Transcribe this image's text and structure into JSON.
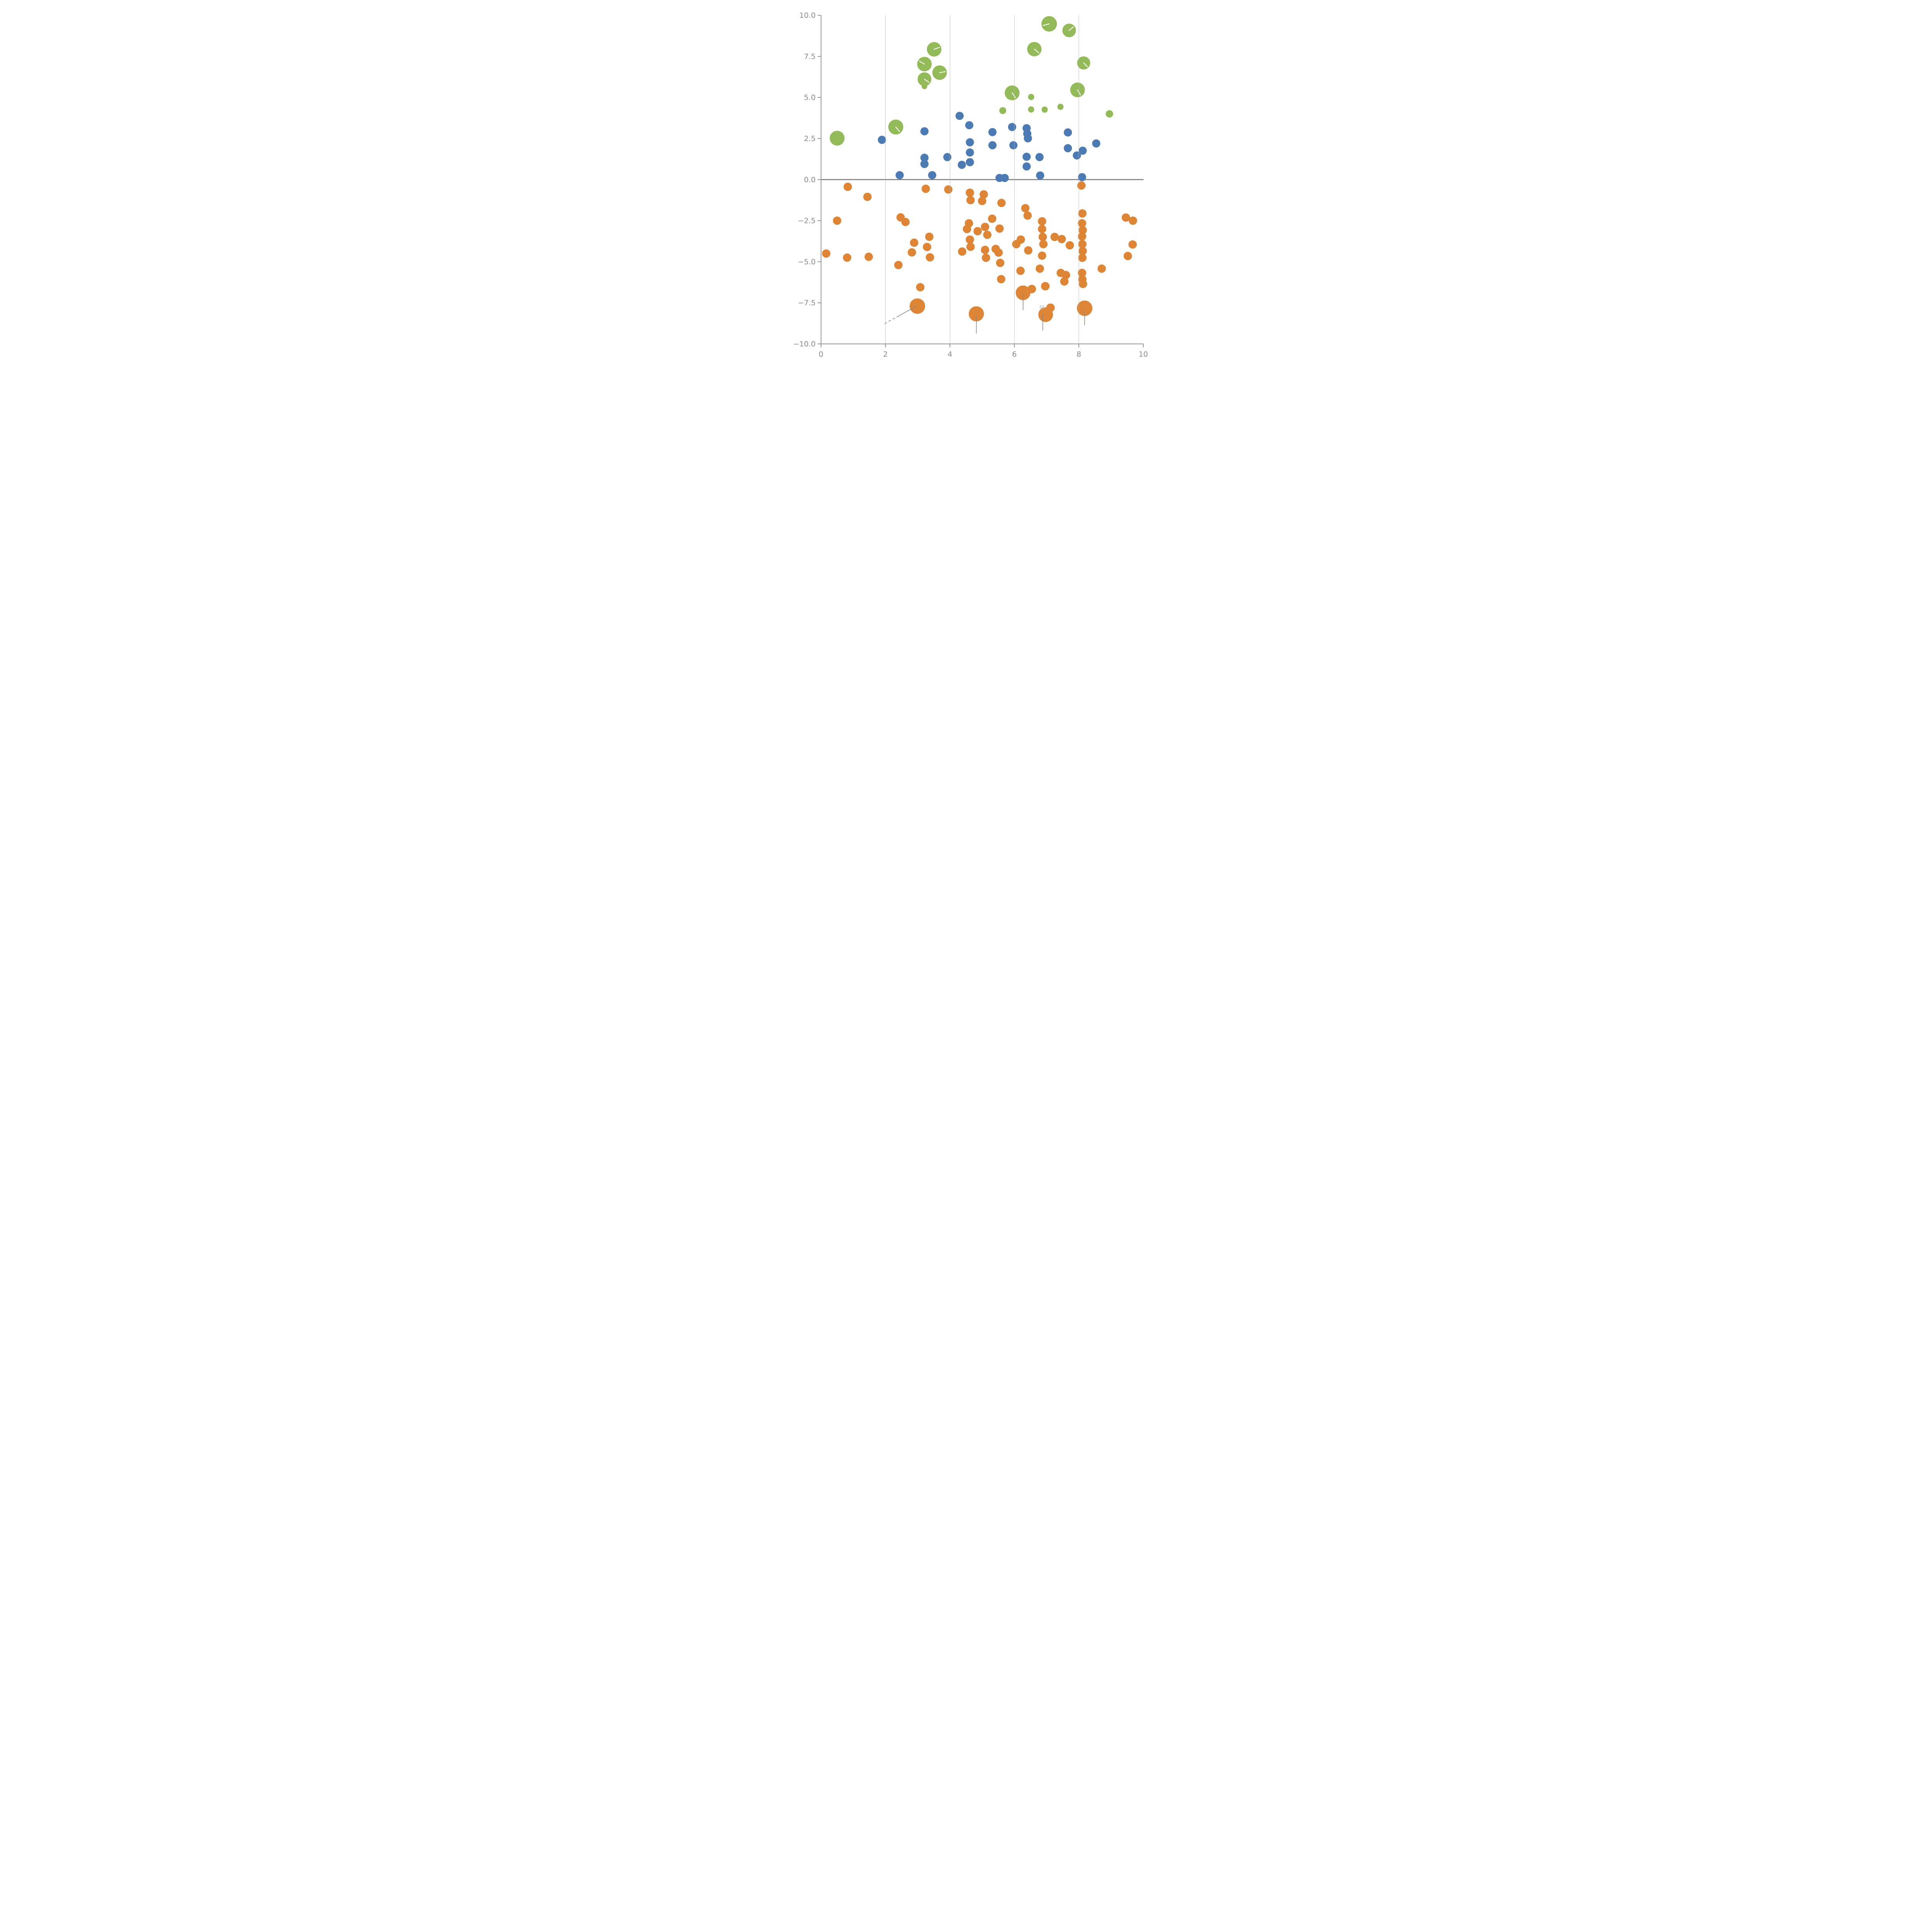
{
  "chart_data": {
    "type": "scatter",
    "title": "",
    "xlabel": "",
    "ylabel": "",
    "xlim": [
      0,
      10
    ],
    "ylim": [
      -10,
      10
    ],
    "grid": "vertical-only",
    "legend": "none",
    "x_ticks": [
      {
        "value": 0,
        "label": "0"
      },
      {
        "value": 2,
        "label": "2"
      },
      {
        "value": 4,
        "label": "4"
      },
      {
        "value": 6,
        "label": "6"
      },
      {
        "value": 8,
        "label": "8"
      },
      {
        "value": 10,
        "label": "10"
      }
    ],
    "y_ticks": [
      {
        "value": 10,
        "label": "10.0"
      },
      {
        "value": 7.5,
        "label": "7.5"
      },
      {
        "value": 5,
        "label": "5.0"
      },
      {
        "value": 2.5,
        "label": "2.5"
      },
      {
        "value": 0,
        "label": "0.0"
      },
      {
        "value": -2.5,
        "label": "−2.5"
      },
      {
        "value": -5,
        "label": "−5.0"
      },
      {
        "value": -7.5,
        "label": "−7.5"
      },
      {
        "value": -10,
        "label": "−10.0"
      }
    ],
    "gridlines_x": [
      2,
      4,
      6,
      8
    ],
    "zero_line_y": 0,
    "colors": {
      "green": "#93ba58",
      "blue": "#4c7bb4",
      "orange": "#dd8435",
      "grid": "#b5b5b5",
      "spine": "#8a8a8a",
      "zero_line": "#7d7d7d",
      "tick_label": "#8a8a8a",
      "annotation_line": "#8a8a8a",
      "needle": "#f2f6ea",
      "text_annotation": "#bfbfbf"
    },
    "series": [
      {
        "name": "green-bubbles",
        "color": "#93ba58",
        "points": [
          {
            "x": 0.5,
            "y": 2.52,
            "r": 19.2,
            "needle": null
          },
          {
            "x": 2.32,
            "y": 3.2,
            "r": 19.4,
            "needle": -50
          },
          {
            "x": 3.51,
            "y": 7.93,
            "r": 18.8,
            "needle": 20
          },
          {
            "x": 3.21,
            "y": 7.03,
            "r": 18.8,
            "needle": 150
          },
          {
            "x": 3.68,
            "y": 6.51,
            "r": 18.8,
            "needle": 10
          },
          {
            "x": 3.21,
            "y": 6.11,
            "r": 17.8,
            "needle": -35
          },
          {
            "x": 3.21,
            "y": 5.67,
            "r": 7.2,
            "needle": null
          },
          {
            "x": 7.08,
            "y": 9.48,
            "r": 20.0,
            "needle": 195
          },
          {
            "x": 7.7,
            "y": 9.08,
            "r": 17.6,
            "needle": 40
          },
          {
            "x": 6.62,
            "y": 7.94,
            "r": 18.6,
            "needle": -40
          },
          {
            "x": 8.15,
            "y": 7.1,
            "r": 17.0,
            "needle": -45
          },
          {
            "x": 5.93,
            "y": 5.28,
            "r": 19.2,
            "needle": -55
          },
          {
            "x": 7.96,
            "y": 5.46,
            "r": 19.0,
            "needle": -60
          },
          {
            "x": 6.52,
            "y": 5.03,
            "r": 8.0,
            "needle": null
          },
          {
            "x": 6.52,
            "y": 4.27,
            "r": 8.0,
            "needle": null
          },
          {
            "x": 6.94,
            "y": 4.26,
            "r": 8.0,
            "needle": null
          },
          {
            "x": 7.43,
            "y": 4.43,
            "r": 8.0,
            "needle": null
          },
          {
            "x": 5.64,
            "y": 4.2,
            "r": 9.0,
            "needle": null
          },
          {
            "x": 8.95,
            "y": 4.0,
            "r": 9.6,
            "needle": null
          }
        ]
      },
      {
        "name": "blue-dots",
        "color": "#4c7bb4",
        "points": [
          {
            "x": 1.89,
            "y": 2.42,
            "r": 10.6
          },
          {
            "x": 2.44,
            "y": 0.27,
            "r": 10.6
          },
          {
            "x": 3.21,
            "y": 2.94,
            "r": 10.6
          },
          {
            "x": 3.21,
            "y": 1.33,
            "r": 10.6
          },
          {
            "x": 3.21,
            "y": 0.95,
            "r": 10.6
          },
          {
            "x": 3.45,
            "y": 0.27,
            "r": 10.6
          },
          {
            "x": 3.92,
            "y": 1.37,
            "r": 10.6
          },
          {
            "x": 4.3,
            "y": 3.88,
            "r": 10.6
          },
          {
            "x": 4.6,
            "y": 3.31,
            "r": 10.6
          },
          {
            "x": 4.62,
            "y": 2.27,
            "r": 10.6
          },
          {
            "x": 4.62,
            "y": 1.65,
            "r": 10.6
          },
          {
            "x": 4.62,
            "y": 1.06,
            "r": 10.6
          },
          {
            "x": 4.37,
            "y": 0.9,
            "r": 10.6
          },
          {
            "x": 5.32,
            "y": 2.89,
            "r": 10.6
          },
          {
            "x": 5.32,
            "y": 2.09,
            "r": 10.6
          },
          {
            "x": 5.93,
            "y": 3.2,
            "r": 10.6
          },
          {
            "x": 5.97,
            "y": 2.09,
            "r": 10.6
          },
          {
            "x": 6.38,
            "y": 3.13,
            "r": 10.6
          },
          {
            "x": 6.4,
            "y": 2.79,
            "r": 10.6
          },
          {
            "x": 6.42,
            "y": 2.51,
            "r": 10.6
          },
          {
            "x": 6.38,
            "y": 1.39,
            "r": 10.6
          },
          {
            "x": 6.78,
            "y": 1.37,
            "r": 10.6
          },
          {
            "x": 6.38,
            "y": 0.8,
            "r": 10.6
          },
          {
            "x": 6.8,
            "y": 0.25,
            "r": 10.6
          },
          {
            "x": 5.54,
            "y": 0.1,
            "r": 10.6
          },
          {
            "x": 5.7,
            "y": 0.1,
            "r": 10.6
          },
          {
            "x": 7.66,
            "y": 2.87,
            "r": 10.6
          },
          {
            "x": 8.54,
            "y": 2.2,
            "r": 10.6
          },
          {
            "x": 7.66,
            "y": 1.91,
            "r": 10.6
          },
          {
            "x": 8.12,
            "y": 1.76,
            "r": 10.6
          },
          {
            "x": 7.94,
            "y": 1.47,
            "r": 10.6
          },
          {
            "x": 8.1,
            "y": 0.15,
            "r": 10.6
          }
        ]
      },
      {
        "name": "orange-dots",
        "color": "#dd8435",
        "points": [
          {
            "x": 0.83,
            "y": -0.44,
            "r": 10.8
          },
          {
            "x": 1.44,
            "y": -1.05,
            "r": 10.8
          },
          {
            "x": 3.25,
            "y": -0.56,
            "r": 10.8
          },
          {
            "x": 3.95,
            "y": -0.6,
            "r": 10.8
          },
          {
            "x": 4.62,
            "y": -0.8,
            "r": 10.8
          },
          {
            "x": 4.64,
            "y": -1.25,
            "r": 10.8
          },
          {
            "x": 5.05,
            "y": -0.9,
            "r": 10.8
          },
          {
            "x": 5.0,
            "y": -1.3,
            "r": 10.8
          },
          {
            "x": 5.6,
            "y": -1.42,
            "r": 10.8
          },
          {
            "x": 6.34,
            "y": -1.74,
            "r": 10.8
          },
          {
            "x": 6.41,
            "y": -2.19,
            "r": 10.8
          },
          {
            "x": 8.08,
            "y": -0.36,
            "r": 10.8
          },
          {
            "x": 0.5,
            "y": -2.5,
            "r": 10.8
          },
          {
            "x": 0.16,
            "y": -4.5,
            "r": 10.8
          },
          {
            "x": 0.81,
            "y": -4.75,
            "r": 10.8
          },
          {
            "x": 1.48,
            "y": -4.7,
            "r": 10.8
          },
          {
            "x": 2.47,
            "y": -2.3,
            "r": 10.8
          },
          {
            "x": 2.62,
            "y": -2.58,
            "r": 10.8
          },
          {
            "x": 3.36,
            "y": -3.48,
            "r": 10.8
          },
          {
            "x": 2.89,
            "y": -3.84,
            "r": 10.8
          },
          {
            "x": 3.29,
            "y": -4.1,
            "r": 10.8
          },
          {
            "x": 3.38,
            "y": -4.73,
            "r": 10.8
          },
          {
            "x": 2.82,
            "y": -4.43,
            "r": 10.8
          },
          {
            "x": 2.4,
            "y": -5.2,
            "r": 10.8
          },
          {
            "x": 3.08,
            "y": -6.55,
            "r": 10.8
          },
          {
            "x": 5.31,
            "y": -2.38,
            "r": 10.8
          },
          {
            "x": 4.59,
            "y": -2.66,
            "r": 10.8
          },
          {
            "x": 4.53,
            "y": -3.01,
            "r": 10.8
          },
          {
            "x": 4.86,
            "y": -3.14,
            "r": 10.8
          },
          {
            "x": 5.09,
            "y": -2.88,
            "r": 10.8
          },
          {
            "x": 5.54,
            "y": -2.98,
            "r": 10.8
          },
          {
            "x": 5.16,
            "y": -3.36,
            "r": 10.8
          },
          {
            "x": 4.62,
            "y": -3.65,
            "r": 10.8
          },
          {
            "x": 4.64,
            "y": -4.09,
            "r": 10.8
          },
          {
            "x": 4.38,
            "y": -4.38,
            "r": 10.8
          },
          {
            "x": 5.09,
            "y": -4.28,
            "r": 10.8
          },
          {
            "x": 5.12,
            "y": -4.76,
            "r": 10.8
          },
          {
            "x": 5.42,
            "y": -4.22,
            "r": 10.8
          },
          {
            "x": 5.51,
            "y": -4.44,
            "r": 10.8
          },
          {
            "x": 5.56,
            "y": -5.07,
            "r": 10.8
          },
          {
            "x": 5.59,
            "y": -6.06,
            "r": 10.8
          },
          {
            "x": 6.2,
            "y": -3.65,
            "r": 10.8
          },
          {
            "x": 6.06,
            "y": -3.93,
            "r": 10.8
          },
          {
            "x": 6.43,
            "y": -4.31,
            "r": 10.8
          },
          {
            "x": 6.19,
            "y": -5.55,
            "r": 10.8
          },
          {
            "x": 6.86,
            "y": -2.54,
            "r": 10.8
          },
          {
            "x": 6.86,
            "y": -3.01,
            "r": 10.8
          },
          {
            "x": 6.88,
            "y": -3.49,
            "r": 10.8
          },
          {
            "x": 6.9,
            "y": -3.93,
            "r": 10.8
          },
          {
            "x": 6.86,
            "y": -4.63,
            "r": 10.8
          },
          {
            "x": 6.79,
            "y": -5.42,
            "r": 10.8
          },
          {
            "x": 7.25,
            "y": -3.49,
            "r": 10.8
          },
          {
            "x": 7.47,
            "y": -3.62,
            "r": 10.8
          },
          {
            "x": 7.72,
            "y": -4.0,
            "r": 10.8
          },
          {
            "x": 7.44,
            "y": -5.68,
            "r": 10.8
          },
          {
            "x": 7.6,
            "y": -5.81,
            "r": 10.8
          },
          {
            "x": 7.55,
            "y": -6.2,
            "r": 10.8
          },
          {
            "x": 8.11,
            "y": -2.06,
            "r": 10.8
          },
          {
            "x": 8.1,
            "y": -2.66,
            "r": 10.8
          },
          {
            "x": 8.12,
            "y": -3.08,
            "r": 10.8
          },
          {
            "x": 8.1,
            "y": -3.46,
            "r": 10.8
          },
          {
            "x": 8.11,
            "y": -3.93,
            "r": 10.8
          },
          {
            "x": 8.12,
            "y": -4.35,
            "r": 10.8
          },
          {
            "x": 8.11,
            "y": -4.76,
            "r": 10.8
          },
          {
            "x": 8.1,
            "y": -5.68,
            "r": 10.8
          },
          {
            "x": 8.11,
            "y": -6.07,
            "r": 10.8
          },
          {
            "x": 8.13,
            "y": -6.35,
            "r": 10.8
          },
          {
            "x": 9.46,
            "y": -2.31,
            "r": 10.8
          },
          {
            "x": 9.68,
            "y": -2.5,
            "r": 10.8
          },
          {
            "x": 9.67,
            "y": -3.95,
            "r": 10.8
          },
          {
            "x": 9.52,
            "y": -4.65,
            "r": 10.8
          },
          {
            "x": 8.71,
            "y": -5.42,
            "r": 10.8
          },
          {
            "x": 6.54,
            "y": -6.66,
            "r": 11.0
          },
          {
            "x": 6.96,
            "y": -6.49,
            "r": 11.0
          },
          {
            "x": 7.12,
            "y": -7.8,
            "r": 11.0
          },
          {
            "x": 2.99,
            "y": -7.7,
            "r": 20.0
          },
          {
            "x": 4.82,
            "y": -8.17,
            "r": 19.6
          },
          {
            "x": 6.27,
            "y": -6.89,
            "r": 19.0
          },
          {
            "x": 6.97,
            "y": -8.22,
            "r": 19.0
          },
          {
            "x": 8.18,
            "y": -7.83,
            "r": 20.0
          }
        ]
      }
    ],
    "annotations": {
      "texts": [
        {
          "label": "M",
          "x": 6.85,
          "y": -7.78,
          "size": 14,
          "color": "#bfbfbf"
        }
      ],
      "lines": [
        {
          "name": "leader-dashed",
          "x1": 1.97,
          "y1": -8.77,
          "x2": 2.42,
          "y2": -8.29,
          "dashed": true
        },
        {
          "name": "leader-solid",
          "x1": 2.42,
          "y1": -8.29,
          "x2": 2.95,
          "y2": -7.71,
          "dashed": false
        },
        {
          "name": "stem-1",
          "x1": 4.82,
          "y1": -8.3,
          "x2": 4.82,
          "y2": -9.37,
          "dashed": false
        },
        {
          "name": "stem-2",
          "x1": 6.27,
          "y1": -6.95,
          "x2": 6.27,
          "y2": -7.94,
          "dashed": false
        },
        {
          "name": "stem-3",
          "x1": 6.88,
          "y1": -8.2,
          "x2": 6.88,
          "y2": -9.18,
          "dashed": false
        },
        {
          "name": "stem-4",
          "x1": 8.18,
          "y1": -7.95,
          "x2": 8.18,
          "y2": -8.87,
          "dashed": false
        }
      ]
    }
  }
}
